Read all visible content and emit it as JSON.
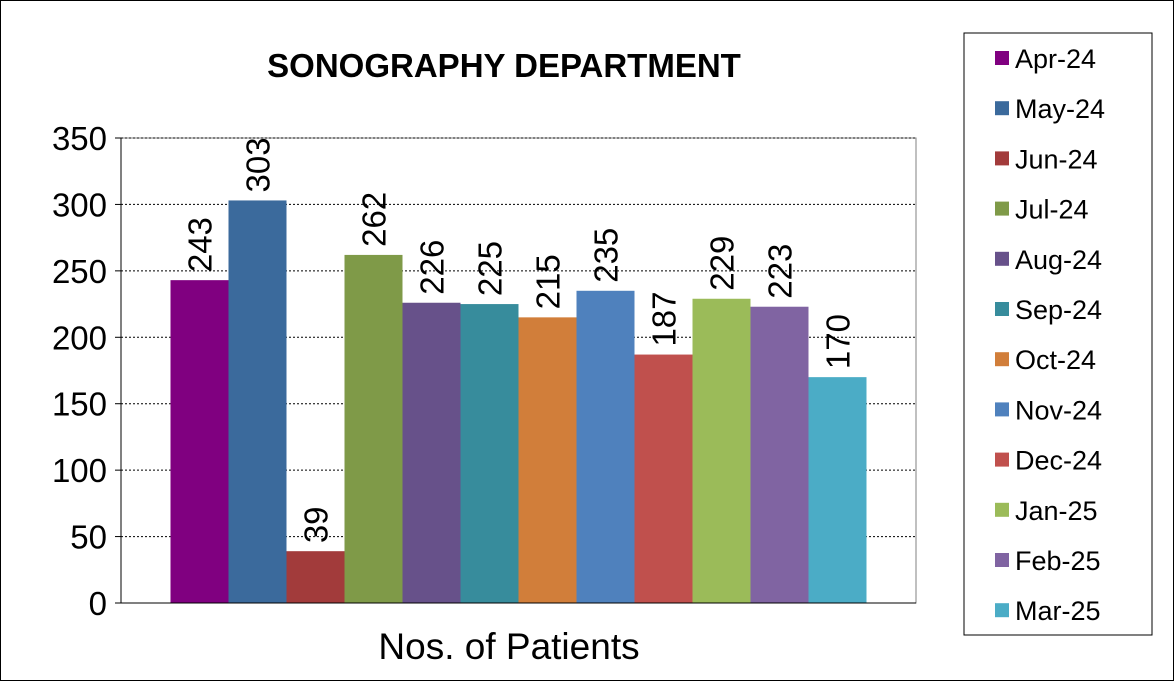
{
  "chart_data": {
    "type": "bar",
    "title": "SONOGRAPHY DEPARTMENT",
    "xlabel": "Nos. of Patients",
    "ylabel": "",
    "ylim": [
      0,
      350
    ],
    "yticks": [
      0,
      50,
      100,
      150,
      200,
      250,
      300,
      350
    ],
    "categories": [
      "Nos. of Patients"
    ],
    "grid": true,
    "legend_position": "right",
    "series": [
      {
        "name": "Apr-24",
        "values": [
          243
        ],
        "color": "#800080"
      },
      {
        "name": "May-24",
        "values": [
          303
        ],
        "color": "#3B6A9C"
      },
      {
        "name": "Jun-24",
        "values": [
          39
        ],
        "color": "#A23B3B"
      },
      {
        "name": "Jul-24",
        "values": [
          262
        ],
        "color": "#7F9A48"
      },
      {
        "name": "Aug-24",
        "values": [
          226
        ],
        "color": "#67518A"
      },
      {
        "name": "Sep-24",
        "values": [
          225
        ],
        "color": "#378C9C"
      },
      {
        "name": "Oct-24",
        "values": [
          215
        ],
        "color": "#D17E3A"
      },
      {
        "name": "Nov-24",
        "values": [
          235
        ],
        "color": "#4F81BD"
      },
      {
        "name": "Dec-24",
        "values": [
          187
        ],
        "color": "#C0504D"
      },
      {
        "name": "Jan-25",
        "values": [
          229
        ],
        "color": "#9BBB59"
      },
      {
        "name": "Feb-25",
        "values": [
          223
        ],
        "color": "#8064A2"
      },
      {
        "name": "Mar-25",
        "values": [
          170
        ],
        "color": "#4BACC6"
      }
    ]
  }
}
